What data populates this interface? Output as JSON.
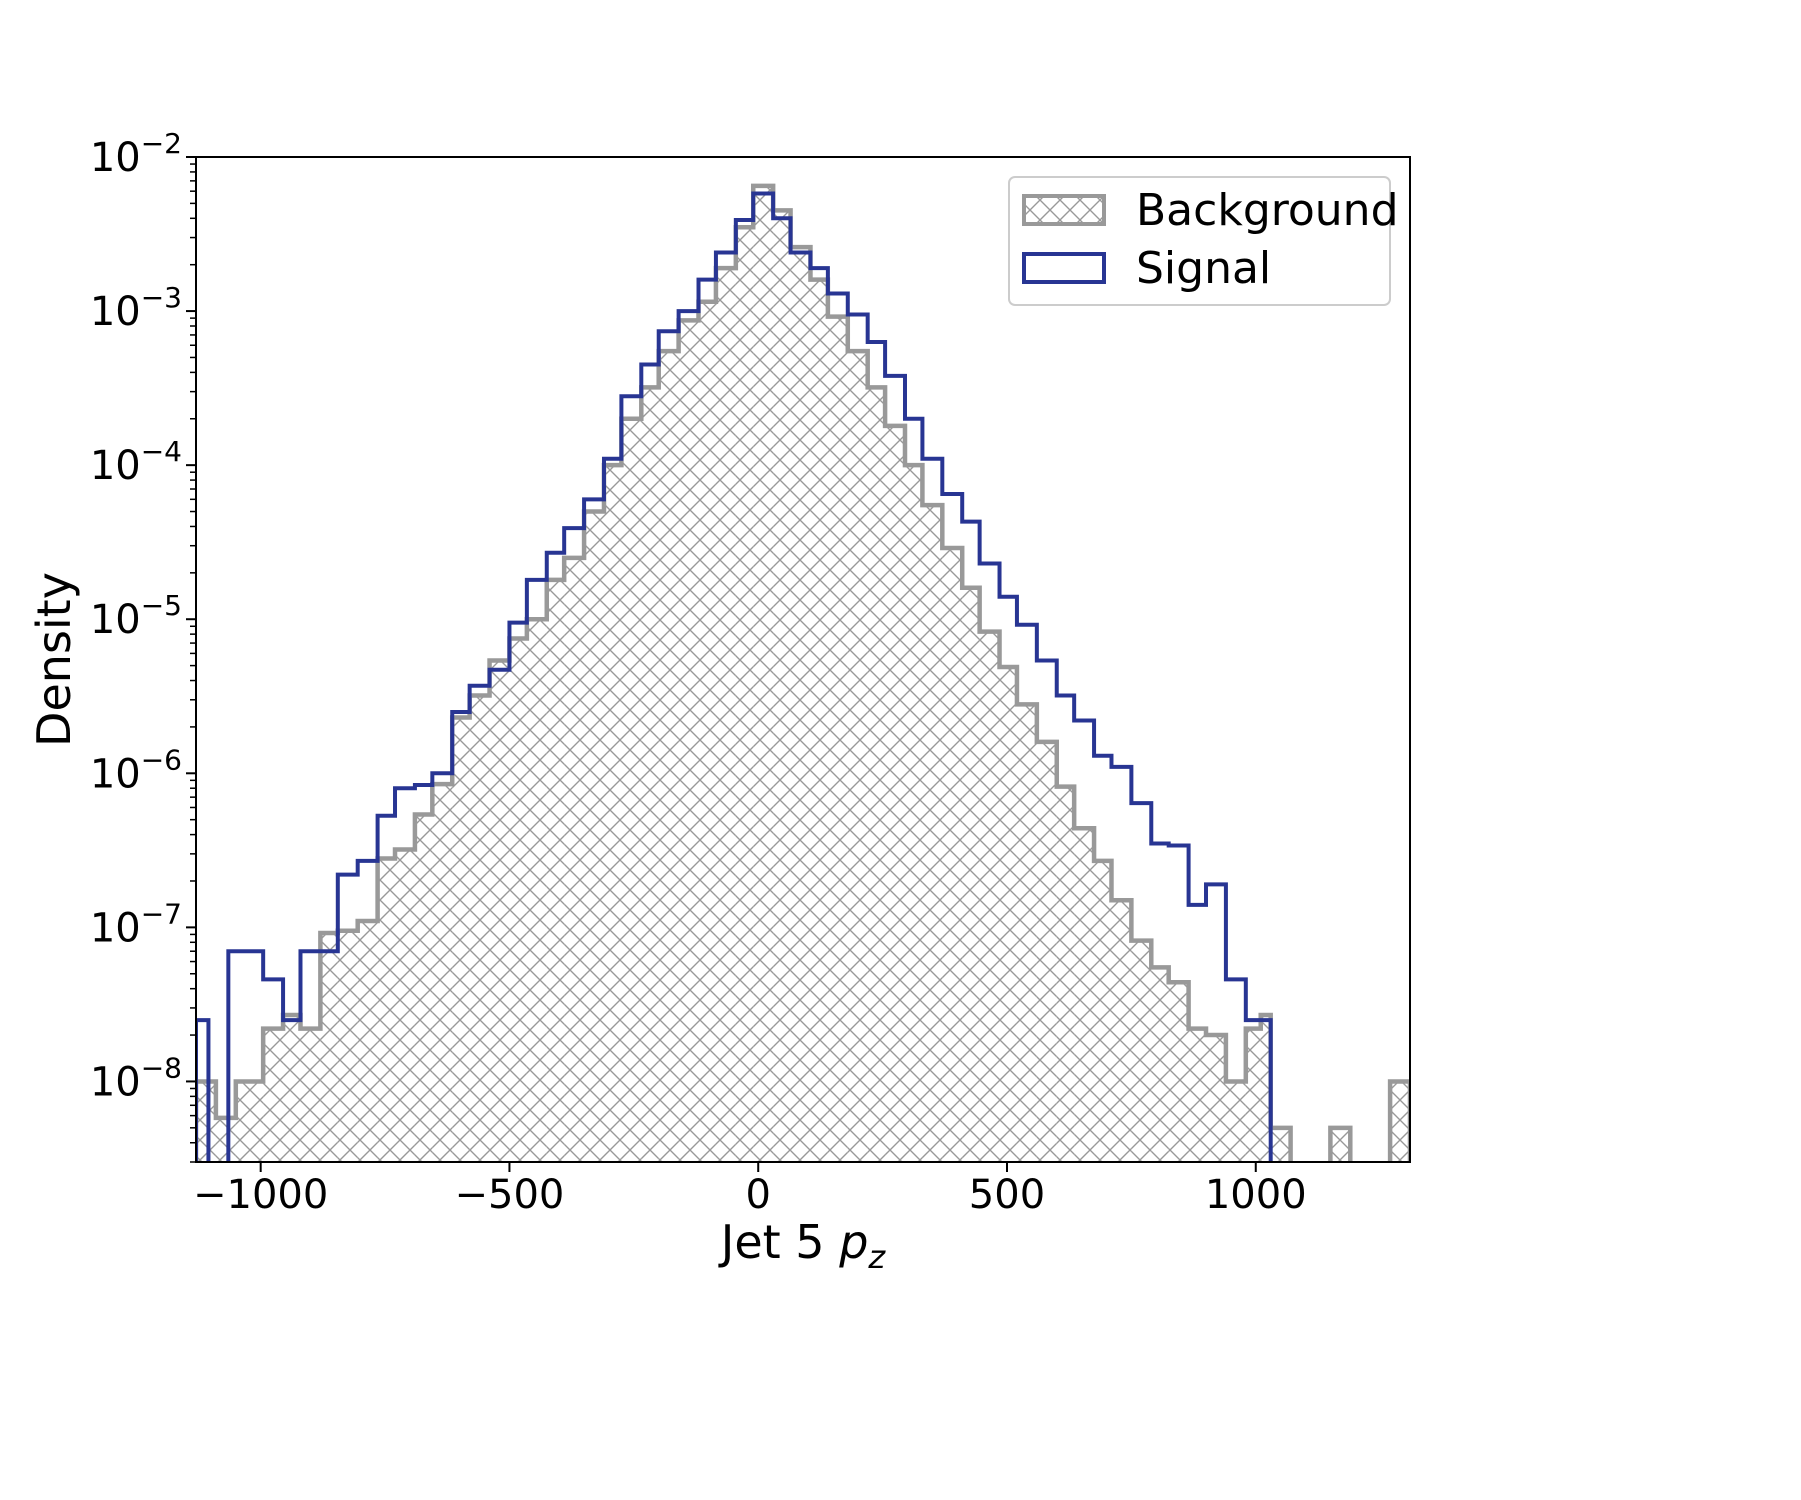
{
  "chart_data": {
    "type": "histogram",
    "xlabel": "Jet 5 p_z",
    "xlabel_main": "Jet 5 ",
    "xlabel_var": "p",
    "xlabel_sub": "z",
    "ylabel": "Density",
    "yscale": "log",
    "xlim": [
      -1130,
      1310
    ],
    "ylim": [
      3e-09,
      0.01
    ],
    "x_ticks": [
      -1000,
      -500,
      0,
      500,
      1000
    ],
    "x_tick_labels": [
      "−1000",
      "−500",
      "0",
      "500",
      "1000"
    ],
    "y_ticks": [
      1e-08,
      1e-07,
      1e-06,
      1e-05,
      0.0001,
      0.001,
      0.01
    ],
    "y_tick_labels": [
      {
        "base": "10",
        "exp": "−8"
      },
      {
        "base": "10",
        "exp": "−7"
      },
      {
        "base": "10",
        "exp": "−6"
      },
      {
        "base": "10",
        "exp": "−5"
      },
      {
        "base": "10",
        "exp": "−4"
      },
      {
        "base": "10",
        "exp": "−3"
      },
      {
        "base": "10",
        "exp": "−2"
      }
    ],
    "legend_position": "upper-right",
    "grid": false,
    "series": [
      {
        "name": "Background",
        "style": "hatched",
        "color": "#999999",
        "hatch_color": "#999999",
        "bins": [
          {
            "x0": -1130,
            "x1": -1090,
            "y": 1e-08
          },
          {
            "x0": -1090,
            "x1": -1050,
            "y": 5.8e-09
          },
          {
            "x0": -1050,
            "x1": -995,
            "y": 1e-08
          },
          {
            "x0": -995,
            "x1": -955,
            "y": 2.2e-08
          },
          {
            "x0": -955,
            "x1": -920,
            "y": 2.7e-08
          },
          {
            "x0": -920,
            "x1": -880,
            "y": 2.2e-08
          },
          {
            "x0": -880,
            "x1": -845,
            "y": 9.2e-08
          },
          {
            "x0": -845,
            "x1": -805,
            "y": 9.5e-08
          },
          {
            "x0": -805,
            "x1": -765,
            "y": 1.1e-07
          },
          {
            "x0": -765,
            "x1": -730,
            "y": 2.8e-07
          },
          {
            "x0": -730,
            "x1": -690,
            "y": 3.2e-07
          },
          {
            "x0": -690,
            "x1": -655,
            "y": 5.4e-07
          },
          {
            "x0": -655,
            "x1": -615,
            "y": 8.5e-07
          },
          {
            "x0": -615,
            "x1": -580,
            "y": 2.3e-06
          },
          {
            "x0": -580,
            "x1": -540,
            "y": 3.2e-06
          },
          {
            "x0": -540,
            "x1": -500,
            "y": 5.4e-06
          },
          {
            "x0": -500,
            "x1": -465,
            "y": 7.5e-06
          },
          {
            "x0": -465,
            "x1": -425,
            "y": 1e-05
          },
          {
            "x0": -425,
            "x1": -390,
            "y": 1.8e-05
          },
          {
            "x0": -390,
            "x1": -350,
            "y": 2.5e-05
          },
          {
            "x0": -350,
            "x1": -310,
            "y": 5e-05
          },
          {
            "x0": -310,
            "x1": -275,
            "y": 0.0001
          },
          {
            "x0": -275,
            "x1": -235,
            "y": 0.0002
          },
          {
            "x0": -235,
            "x1": -200,
            "y": 0.00032
          },
          {
            "x0": -200,
            "x1": -160,
            "y": 0.00055
          },
          {
            "x0": -160,
            "x1": -120,
            "y": 0.00087
          },
          {
            "x0": -120,
            "x1": -85,
            "y": 0.00115
          },
          {
            "x0": -85,
            "x1": -45,
            "y": 0.0019
          },
          {
            "x0": -45,
            "x1": -10,
            "y": 0.0035
          },
          {
            "x0": -10,
            "x1": 30,
            "y": 0.0065
          },
          {
            "x0": 30,
            "x1": 65,
            "y": 0.0045
          },
          {
            "x0": 65,
            "x1": 105,
            "y": 0.0026
          },
          {
            "x0": 105,
            "x1": 140,
            "y": 0.0016
          },
          {
            "x0": 140,
            "x1": 180,
            "y": 0.00092
          },
          {
            "x0": 180,
            "x1": 220,
            "y": 0.00055
          },
          {
            "x0": 220,
            "x1": 255,
            "y": 0.00032
          },
          {
            "x0": 255,
            "x1": 295,
            "y": 0.00018
          },
          {
            "x0": 295,
            "x1": 330,
            "y": 0.0001
          },
          {
            "x0": 330,
            "x1": 370,
            "y": 5.5e-05
          },
          {
            "x0": 370,
            "x1": 410,
            "y": 2.9e-05
          },
          {
            "x0": 410,
            "x1": 445,
            "y": 1.6e-05
          },
          {
            "x0": 445,
            "x1": 485,
            "y": 8.3e-06
          },
          {
            "x0": 485,
            "x1": 520,
            "y": 4.9e-06
          },
          {
            "x0": 520,
            "x1": 560,
            "y": 2.8e-06
          },
          {
            "x0": 560,
            "x1": 600,
            "y": 1.6e-06
          },
          {
            "x0": 600,
            "x1": 635,
            "y": 8.2e-07
          },
          {
            "x0": 635,
            "x1": 675,
            "y": 4.4e-07
          },
          {
            "x0": 675,
            "x1": 710,
            "y": 2.7e-07
          },
          {
            "x0": 710,
            "x1": 750,
            "y": 1.5e-07
          },
          {
            "x0": 750,
            "x1": 790,
            "y": 8.2e-08
          },
          {
            "x0": 790,
            "x1": 825,
            "y": 5.5e-08
          },
          {
            "x0": 825,
            "x1": 865,
            "y": 4.4e-08
          },
          {
            "x0": 865,
            "x1": 900,
            "y": 2.2e-08
          },
          {
            "x0": 900,
            "x1": 940,
            "y": 2e-08
          },
          {
            "x0": 940,
            "x1": 980,
            "y": 1e-08
          },
          {
            "x0": 980,
            "x1": 1010,
            "y": 2.2e-08
          },
          {
            "x0": 1010,
            "x1": 1030,
            "y": 2.7e-08
          },
          {
            "x0": 1030,
            "x1": 1070,
            "y": 5e-09
          },
          {
            "x0": 1070,
            "x1": 1150,
            "y": 0
          },
          {
            "x0": 1150,
            "x1": 1190,
            "y": 5e-09
          },
          {
            "x0": 1190,
            "x1": 1270,
            "y": 0
          },
          {
            "x0": 1270,
            "x1": 1310,
            "y": 1e-08
          }
        ]
      },
      {
        "name": "Signal",
        "style": "step",
        "color": "#283593",
        "bins": [
          {
            "x0": -1130,
            "x1": -1105,
            "y": 2.5e-08
          },
          {
            "x0": -1105,
            "x1": -1065,
            "y": 0
          },
          {
            "x0": -1065,
            "x1": -995,
            "y": 7e-08
          },
          {
            "x0": -995,
            "x1": -955,
            "y": 4.6e-08
          },
          {
            "x0": -955,
            "x1": -920,
            "y": 2.5e-08
          },
          {
            "x0": -920,
            "x1": -845,
            "y": 7e-08
          },
          {
            "x0": -845,
            "x1": -805,
            "y": 2.2e-07
          },
          {
            "x0": -805,
            "x1": -765,
            "y": 2.7e-07
          },
          {
            "x0": -765,
            "x1": -730,
            "y": 5.3e-07
          },
          {
            "x0": -730,
            "x1": -690,
            "y": 8e-07
          },
          {
            "x0": -690,
            "x1": -655,
            "y": 8.4e-07
          },
          {
            "x0": -655,
            "x1": -615,
            "y": 1e-06
          },
          {
            "x0": -615,
            "x1": -580,
            "y": 2.5e-06
          },
          {
            "x0": -580,
            "x1": -540,
            "y": 3.7e-06
          },
          {
            "x0": -540,
            "x1": -500,
            "y": 4.7e-06
          },
          {
            "x0": -500,
            "x1": -465,
            "y": 9.5e-06
          },
          {
            "x0": -465,
            "x1": -425,
            "y": 1.8e-05
          },
          {
            "x0": -425,
            "x1": -390,
            "y": 2.7e-05
          },
          {
            "x0": -390,
            "x1": -350,
            "y": 3.9e-05
          },
          {
            "x0": -350,
            "x1": -310,
            "y": 6e-05
          },
          {
            "x0": -310,
            "x1": -275,
            "y": 0.00011
          },
          {
            "x0": -275,
            "x1": -235,
            "y": 0.00028
          },
          {
            "x0": -235,
            "x1": -200,
            "y": 0.00045
          },
          {
            "x0": -200,
            "x1": -160,
            "y": 0.00074
          },
          {
            "x0": -160,
            "x1": -120,
            "y": 0.001
          },
          {
            "x0": -120,
            "x1": -85,
            "y": 0.0016
          },
          {
            "x0": -85,
            "x1": -45,
            "y": 0.0024
          },
          {
            "x0": -45,
            "x1": -10,
            "y": 0.0039
          },
          {
            "x0": -10,
            "x1": 30,
            "y": 0.0058
          },
          {
            "x0": 30,
            "x1": 65,
            "y": 0.004
          },
          {
            "x0": 65,
            "x1": 105,
            "y": 0.0024
          },
          {
            "x0": 105,
            "x1": 140,
            "y": 0.0019
          },
          {
            "x0": 140,
            "x1": 180,
            "y": 0.0013
          },
          {
            "x0": 180,
            "x1": 220,
            "y": 0.00095
          },
          {
            "x0": 220,
            "x1": 255,
            "y": 0.00063
          },
          {
            "x0": 255,
            "x1": 295,
            "y": 0.00038
          },
          {
            "x0": 295,
            "x1": 330,
            "y": 0.0002
          },
          {
            "x0": 330,
            "x1": 370,
            "y": 0.00011
          },
          {
            "x0": 370,
            "x1": 410,
            "y": 6.5e-05
          },
          {
            "x0": 410,
            "x1": 445,
            "y": 4.3e-05
          },
          {
            "x0": 445,
            "x1": 485,
            "y": 2.3e-05
          },
          {
            "x0": 485,
            "x1": 520,
            "y": 1.4e-05
          },
          {
            "x0": 520,
            "x1": 560,
            "y": 9.2e-06
          },
          {
            "x0": 560,
            "x1": 600,
            "y": 5.4e-06
          },
          {
            "x0": 600,
            "x1": 635,
            "y": 3.2e-06
          },
          {
            "x0": 635,
            "x1": 675,
            "y": 2.2e-06
          },
          {
            "x0": 675,
            "x1": 710,
            "y": 1.3e-06
          },
          {
            "x0": 710,
            "x1": 750,
            "y": 1.1e-06
          },
          {
            "x0": 750,
            "x1": 790,
            "y": 6.4e-07
          },
          {
            "x0": 790,
            "x1": 825,
            "y": 3.5e-07
          },
          {
            "x0": 825,
            "x1": 865,
            "y": 3.4e-07
          },
          {
            "x0": 865,
            "x1": 900,
            "y": 1.4e-07
          },
          {
            "x0": 900,
            "x1": 940,
            "y": 1.9e-07
          },
          {
            "x0": 940,
            "x1": 980,
            "y": 4.6e-08
          },
          {
            "x0": 980,
            "x1": 1010,
            "y": 2.5e-08
          },
          {
            "x0": 1010,
            "x1": 1030,
            "y": 2.5e-08
          },
          {
            "x0": 1030,
            "x1": 1310,
            "y": 0
          }
        ]
      }
    ]
  }
}
